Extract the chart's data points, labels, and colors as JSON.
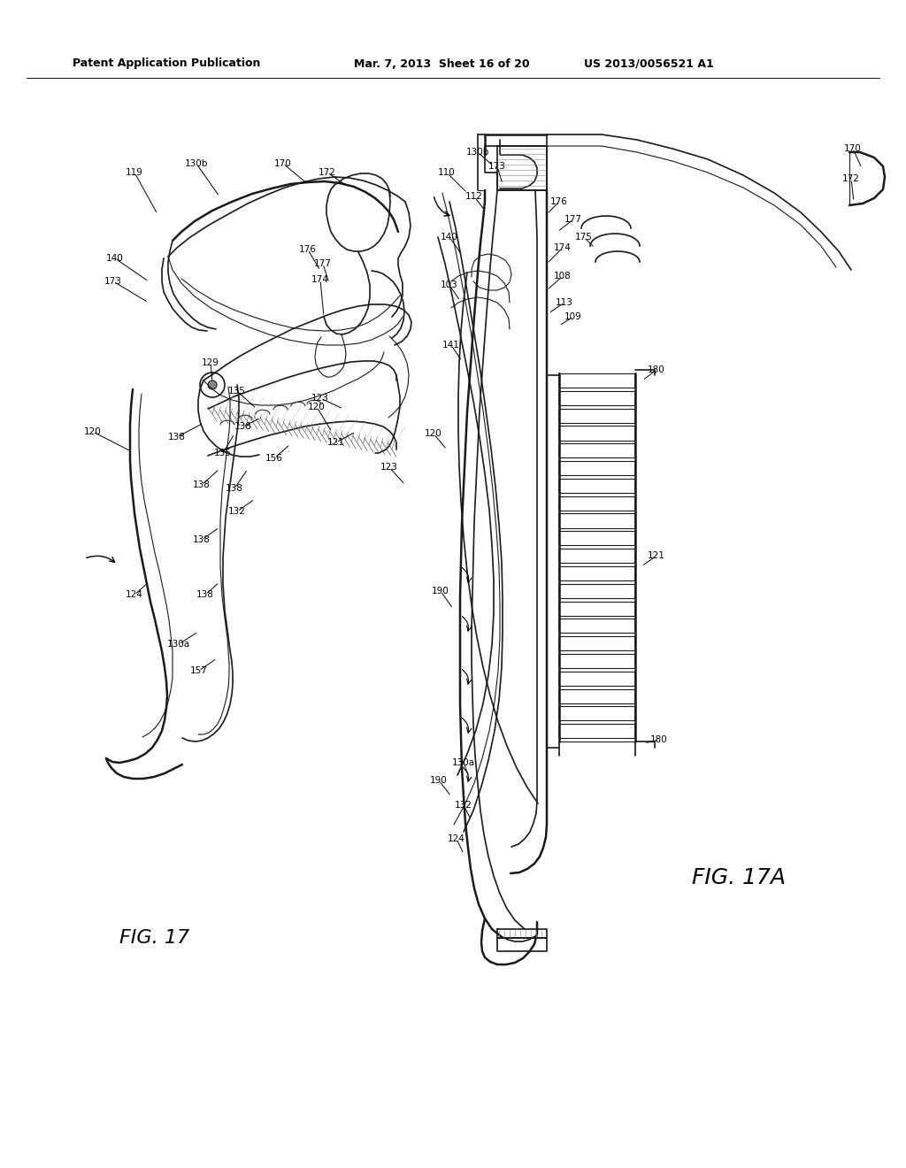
{
  "title_left": "Patent Application Publication",
  "title_mid": "Mar. 7, 2013  Sheet 16 of 20",
  "title_right": "US 2013/0056521 A1",
  "fig17_label": "FIG. 17",
  "fig17a_label": "FIG. 17A",
  "bg_color": "#ffffff",
  "line_color": "#1a1a1a",
  "header_fontsize": 9,
  "label_fontsize": 7.5,
  "fig_label_fontsize": 16
}
